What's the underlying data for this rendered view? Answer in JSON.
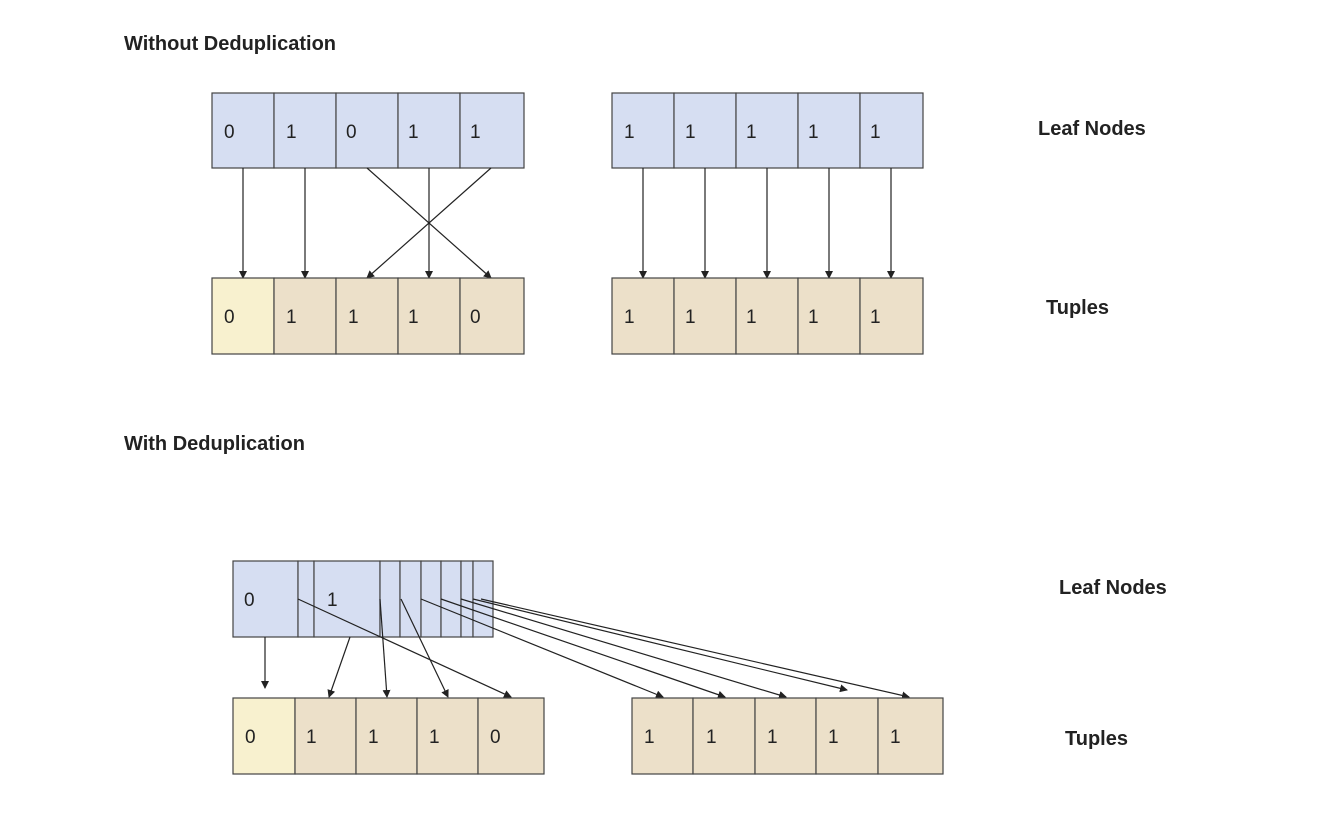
{
  "sections": {
    "without": {
      "title": "Without Deduplication",
      "left_leaf": [
        "0",
        "1",
        "0",
        "1",
        "1"
      ],
      "left_tuples": [
        "0",
        "1",
        "1",
        "1",
        "0"
      ],
      "right_leaf": [
        "1",
        "1",
        "1",
        "1",
        "1"
      ],
      "right_tuples": [
        "1",
        "1",
        "1",
        "1",
        "1"
      ],
      "leaf_label": "Leaf Nodes",
      "tuples_label": "Tuples"
    },
    "with": {
      "title": "With Deduplication",
      "leaf": [
        "0",
        "1"
      ],
      "left_tuples": [
        "0",
        "1",
        "1",
        "1",
        "0"
      ],
      "right_tuples": [
        "1",
        "1",
        "1",
        "1",
        "1"
      ],
      "leaf_label": "Leaf Nodes",
      "tuples_label": "Tuples"
    }
  },
  "colors": {
    "leaf_fill": "#d6def2",
    "tuple_fill": "#ece0c9",
    "highlight_tuple_fill": "#f8f1cf",
    "stroke": "#444444"
  }
}
